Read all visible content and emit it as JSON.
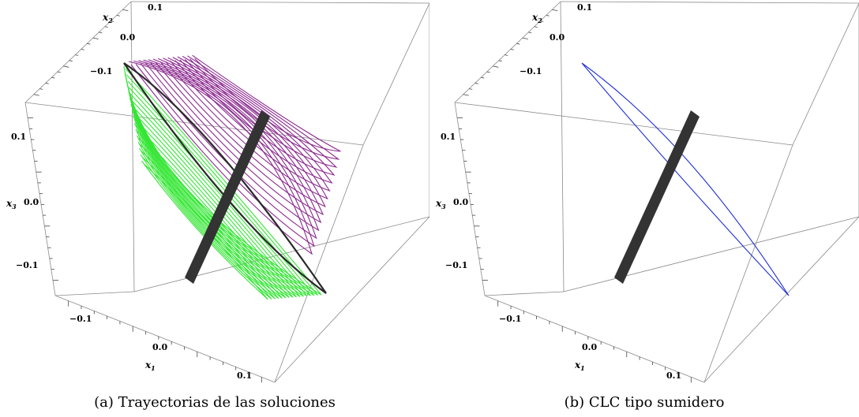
{
  "chart_data": [
    {
      "type": "3d-trajectories",
      "caption": "(a) Trayectorias de las soluciones",
      "axes": {
        "x1": {
          "label": "x1",
          "ticks": [
            "−0.1",
            "0.0",
            "0.1"
          ]
        },
        "x2": {
          "label": "x2",
          "ticks": [
            "0.1",
            "0.0",
            "−0.1"
          ]
        },
        "x3": {
          "label": "x3",
          "ticks": [
            "0.1",
            "0.0",
            "−0.1"
          ]
        }
      },
      "series": [
        {
          "role": "trajectories-outer",
          "color": "#8b2a8f"
        },
        {
          "role": "trajectories-inner",
          "color": "#33e633"
        },
        {
          "role": "limit-cycle",
          "color": "#2a2a2a"
        },
        {
          "role": "equilibrium-plane",
          "color": "#333333"
        }
      ]
    },
    {
      "type": "3d-limit-cycle",
      "caption": "(b) CLC tipo sumidero",
      "axes": {
        "x1": {
          "label": "x1",
          "ticks": [
            "−0.1",
            "0.0",
            "0.1"
          ]
        },
        "x2": {
          "label": "x2",
          "ticks": [
            "0.1",
            "0.0",
            "−0.1"
          ]
        },
        "x3": {
          "label": "x3",
          "ticks": [
            "0.1",
            "0.0",
            "−0.1"
          ]
        }
      },
      "series": [
        {
          "role": "limit-cycle",
          "color": "#1f2fd6"
        },
        {
          "role": "equilibrium-plane",
          "color": "#333333"
        }
      ]
    }
  ]
}
